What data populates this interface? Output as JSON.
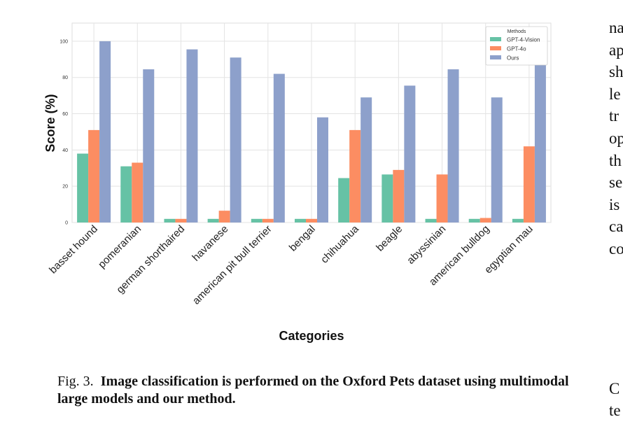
{
  "chart_data": {
    "type": "bar",
    "xlabel": "Categories",
    "ylabel": "Score (%)",
    "ylim": [
      0,
      110
    ],
    "yticks": [
      "0",
      "20",
      "40",
      "60",
      "80",
      "100"
    ],
    "grid": true,
    "legend_placement": "top-right",
    "legend_title": "Methods",
    "categories": [
      "basset hound",
      "pomeranian",
      "german shorthaired",
      "havanese",
      "american pit bull terrier",
      "bengal",
      "chihuahua",
      "beagle",
      "abyssinian",
      "american bulldog",
      "egyptian mau"
    ],
    "series": [
      {
        "name": "GPT-4-Vision",
        "color": "#66c2a5",
        "values": [
          38,
          31,
          2,
          2,
          2,
          2,
          24.5,
          26.5,
          2,
          2,
          2
        ]
      },
      {
        "name": "GPT-4o",
        "color": "#fc8d62",
        "values": [
          51,
          33,
          2,
          6.5,
          2,
          2,
          51,
          29,
          26.5,
          2.5,
          42
        ]
      },
      {
        "name": "Ours",
        "color": "#8da0cb",
        "values": [
          100,
          84.5,
          95.5,
          91,
          82,
          58,
          69,
          75.5,
          84.5,
          69,
          87
        ]
      }
    ]
  },
  "caption": {
    "fig_label": "Fig. 3.",
    "text": "Image classification is performed on the Oxford Pets dataset using multimodal large models and our method."
  },
  "side_text": {
    "lines": [
      "na",
      "ap",
      "sh",
      "le",
      "tr",
      "op",
      "th",
      "se",
      "is",
      "ca",
      "co"
    ],
    "bottom_lines": [
      "C",
      "te"
    ]
  }
}
